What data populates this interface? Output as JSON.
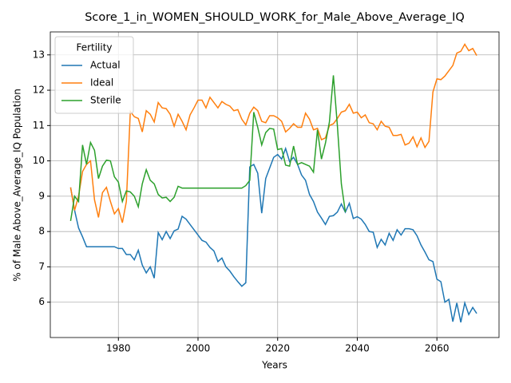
{
  "chart_data": {
    "type": "line",
    "title": "Score_1_in_WOMEN_SHOULD_WORK_for_Male_Above_Average_IQ",
    "xlabel": "Years",
    "ylabel": "% of Male Above_Average_IQ Population",
    "legend_title": "Fertility",
    "legend": "upper left",
    "grid": true,
    "xlim": [
      1962.9,
      2075.6
    ],
    "ylim": [
      5.0,
      13.65
    ],
    "xticks": [
      1980,
      2000,
      2020,
      2040,
      2060
    ],
    "yticks": [
      6,
      7,
      8,
      9,
      10,
      11,
      12,
      13
    ],
    "x": [
      1968,
      1969,
      1970,
      1971,
      1972,
      1973,
      1974,
      1975,
      1976,
      1977,
      1978,
      1979,
      1980,
      1981,
      1982,
      1983,
      1984,
      1985,
      1986,
      1987,
      1988,
      1989,
      1990,
      1991,
      1992,
      1993,
      1994,
      1995,
      1996,
      1997,
      1998,
      1999,
      2000,
      2001,
      2002,
      2003,
      2004,
      2005,
      2006,
      2007,
      2008,
      2009,
      2010,
      2011,
      2012,
      2013,
      2014,
      2015,
      2016,
      2017,
      2018,
      2019,
      2020,
      2021,
      2022,
      2023,
      2024,
      2025,
      2026,
      2027,
      2028,
      2029,
      2030,
      2031,
      2032,
      2033,
      2034,
      2035,
      2036,
      2037,
      2038,
      2039,
      2040,
      2041,
      2042,
      2043,
      2044,
      2045,
      2046,
      2047,
      2048,
      2049,
      2050,
      2051,
      2052,
      2053,
      2054,
      2055,
      2056,
      2057,
      2058,
      2059,
      2060,
      2061,
      2062,
      2063,
      2064,
      2065,
      2066,
      2067,
      2068,
      2069,
      2070
    ],
    "series": [
      {
        "name": "Actual",
        "color": "#1f77b4",
        "values": [
          9.25,
          8.6,
          8.1,
          7.85,
          7.57,
          7.57,
          7.57,
          7.57,
          7.57,
          7.57,
          7.57,
          7.57,
          7.52,
          7.52,
          7.35,
          7.35,
          7.2,
          7.47,
          7.05,
          6.83,
          7.0,
          6.68,
          7.97,
          7.77,
          8.0,
          7.8,
          8.02,
          8.07,
          8.43,
          8.35,
          8.2,
          8.05,
          7.9,
          7.75,
          7.7,
          7.55,
          7.45,
          7.15,
          7.25,
          7.0,
          6.88,
          6.72,
          6.58,
          6.45,
          6.55,
          9.83,
          9.9,
          9.65,
          8.52,
          9.5,
          9.8,
          10.1,
          10.18,
          10.05,
          10.35,
          9.98,
          10.1,
          9.9,
          9.6,
          9.45,
          9.05,
          8.85,
          8.55,
          8.38,
          8.2,
          8.43,
          8.45,
          8.55,
          8.78,
          8.55,
          8.8,
          8.37,
          8.42,
          8.35,
          8.2,
          8.0,
          7.98,
          7.55,
          7.78,
          7.62,
          7.95,
          7.75,
          8.05,
          7.9,
          8.08,
          8.08,
          8.05,
          7.88,
          7.62,
          7.42,
          7.2,
          7.15,
          6.65,
          6.58,
          6.0,
          6.08,
          5.45,
          5.98,
          5.43,
          5.98,
          5.65,
          5.85,
          5.68
        ]
      },
      {
        "name": "Ideal",
        "color": "#ff7f0e",
        "values": [
          9.25,
          8.6,
          9.0,
          9.7,
          9.9,
          10.0,
          8.9,
          8.4,
          9.1,
          9.25,
          8.85,
          8.5,
          8.65,
          8.25,
          8.85,
          11.4,
          11.25,
          11.2,
          10.82,
          11.42,
          11.32,
          11.1,
          11.65,
          11.5,
          11.48,
          11.32,
          10.98,
          11.32,
          11.12,
          10.88,
          11.3,
          11.5,
          11.72,
          11.72,
          11.5,
          11.8,
          11.65,
          11.5,
          11.68,
          11.6,
          11.55,
          11.42,
          11.45,
          11.18,
          11.02,
          11.35,
          11.52,
          11.42,
          11.12,
          11.08,
          11.28,
          11.28,
          11.22,
          11.12,
          10.82,
          10.92,
          11.05,
          10.95,
          10.95,
          11.35,
          11.18,
          10.88,
          10.92,
          10.6,
          10.65,
          11.0,
          11.05,
          11.2,
          11.38,
          11.42,
          11.6,
          11.35,
          11.38,
          11.22,
          11.3,
          11.08,
          11.05,
          10.88,
          11.12,
          10.98,
          10.95,
          10.72,
          10.72,
          10.75,
          10.45,
          10.5,
          10.68,
          10.4,
          10.65,
          10.38,
          10.55,
          11.95,
          12.32,
          12.3,
          12.4,
          12.55,
          12.7,
          13.05,
          13.1,
          13.3,
          13.12,
          13.18,
          12.98
        ]
      },
      {
        "name": "Sterile",
        "color": "#2ca02c",
        "values": [
          8.3,
          9.0,
          8.85,
          10.45,
          9.9,
          10.52,
          10.3,
          9.5,
          9.85,
          10.02,
          10.0,
          9.55,
          9.4,
          8.85,
          9.15,
          9.12,
          9.0,
          8.7,
          9.35,
          9.75,
          9.45,
          9.35,
          9.05,
          8.95,
          8.97,
          8.85,
          8.97,
          9.28,
          9.23,
          9.23,
          9.23,
          9.23,
          9.23,
          9.23,
          9.23,
          9.23,
          9.23,
          9.23,
          9.23,
          9.23,
          9.23,
          9.23,
          9.23,
          9.23,
          9.3,
          9.45,
          11.38,
          10.95,
          10.45,
          10.8,
          10.92,
          10.9,
          10.32,
          10.35,
          9.88,
          9.85,
          10.42,
          9.9,
          9.95,
          9.9,
          9.85,
          9.68,
          10.88,
          10.05,
          10.5,
          11.1,
          12.42,
          11.0,
          9.35,
          8.55,
          null,
          null,
          null,
          null,
          null,
          null,
          null,
          null,
          null,
          null,
          null,
          null,
          null,
          null,
          null,
          null,
          null,
          null,
          null,
          null,
          null,
          null,
          null,
          null,
          null,
          null,
          null,
          null,
          null,
          null,
          null,
          null,
          null
        ]
      }
    ]
  }
}
